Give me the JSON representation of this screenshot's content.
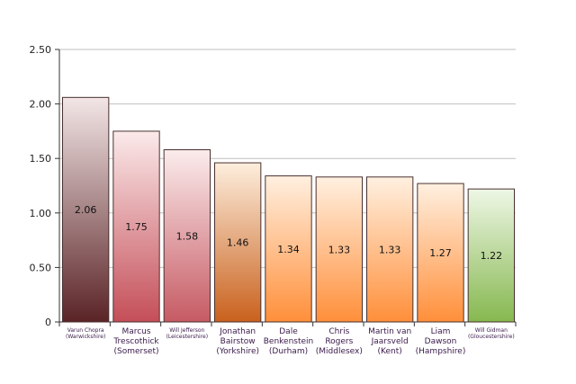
{
  "chart_data": {
    "type": "bar",
    "categories": [
      [
        "Varun Chopra",
        "(Warwickshire)"
      ],
      [
        "Marcus",
        "Trescothick",
        "(Somerset)"
      ],
      [
        "Will Jefferson",
        "(Leicestershire)"
      ],
      [
        "Jonathan",
        "Bairstow",
        "(Yorkshire)"
      ],
      [
        "Dale",
        "Benkenstein",
        "(Durham)"
      ],
      [
        "Chris",
        "Rogers",
        "(Middlesex)"
      ],
      [
        "Martin van",
        "Jaarsveld",
        "(Kent)"
      ],
      [
        "Liam",
        "Dawson",
        "(Hampshire)"
      ],
      [
        "Will Gidman",
        "(Gloucestershire)"
      ]
    ],
    "values": [
      2.06,
      1.75,
      1.58,
      1.46,
      1.34,
      1.33,
      1.33,
      1.27,
      1.22
    ],
    "value_labels": [
      "2.06",
      "1.75",
      "1.58",
      "1.46",
      "1.34",
      "1.33",
      "1.33",
      "1.27",
      "1.22"
    ],
    "yticks": [
      "0",
      "0.50",
      "1.00",
      "1.50",
      "2.00",
      "2.50"
    ],
    "ylim": [
      0,
      2.5
    ],
    "grid": true,
    "title": "",
    "xlabel": "",
    "ylabel": "",
    "bar_colors": [
      {
        "top": "#f3e6e6",
        "bottom": "#5a2326"
      },
      {
        "top": "#fbeaea",
        "bottom": "#c44e58"
      },
      {
        "top": "#fbecec",
        "bottom": "#c65a63"
      },
      {
        "top": "#fdeedd",
        "bottom": "#c9611d"
      },
      {
        "top": "#fff0e0",
        "bottom": "#ff8f3a"
      },
      {
        "top": "#fff0e0",
        "bottom": "#ff8f3a"
      },
      {
        "top": "#fff0e0",
        "bottom": "#ff8f3a"
      },
      {
        "top": "#fff0e0",
        "bottom": "#ff8f3a"
      },
      {
        "top": "#eef7e6",
        "bottom": "#86b84f"
      }
    ],
    "category_label_color": "#3a1a4a",
    "gridline_color": "#bfbfbf"
  }
}
